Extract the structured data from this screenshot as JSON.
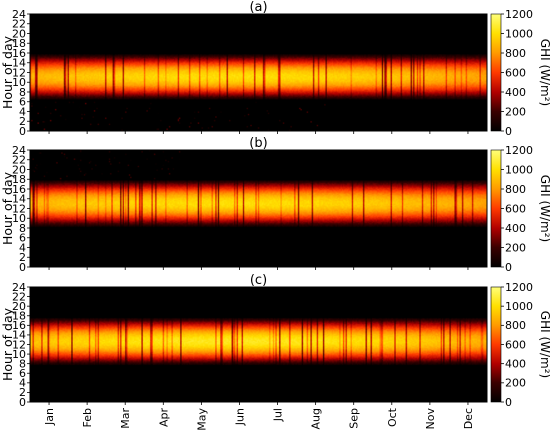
{
  "chart_data": [
    {
      "type": "heatmap",
      "title": "(a)",
      "ylabel": "Hour of day",
      "xlabel": "",
      "y_ticks": [
        "0",
        "2",
        "4",
        "6",
        "8",
        "10",
        "12",
        "14",
        "16",
        "18",
        "20",
        "22",
        "24"
      ],
      "ylim": [
        0,
        24
      ],
      "colorbar_label": "GHI (W/m²)",
      "colorbar_ticks": [
        "0",
        "200",
        "400",
        "600",
        "800",
        "1000",
        "1200"
      ],
      "colorbar_range": [
        0,
        1200
      ],
      "colormap": [
        "#000000",
        "#3a0000",
        "#b20000",
        "#ff3a00",
        "#ff9a00",
        "#ffe000",
        "#ffff7a"
      ],
      "day_start_hour": 6.7,
      "day_end_hour": 15.5,
      "peak_hour": 11.2,
      "peak_ghi": 1000,
      "stray_values_after_midnight": true
    },
    {
      "type": "heatmap",
      "title": "(b)",
      "ylabel": "Hour of day",
      "xlabel": "",
      "y_ticks": [
        "0",
        "2",
        "4",
        "6",
        "8",
        "10",
        "12",
        "14",
        "16",
        "18",
        "20",
        "22",
        "24"
      ],
      "ylim": [
        0,
        24
      ],
      "colorbar_label": "GHI (W/m²)",
      "colorbar_ticks": [
        "0",
        "200",
        "400",
        "600",
        "800",
        "1000",
        "1200"
      ],
      "colorbar_range": [
        0,
        1200
      ],
      "colormap": [
        "#000000",
        "#3a0000",
        "#b20000",
        "#ff3a00",
        "#ff9a00",
        "#ffe000",
        "#ffff7a"
      ],
      "day_start_hour": 8.5,
      "day_end_hour": 17.6,
      "peak_hour": 13.0,
      "peak_ghi": 1000,
      "stray_values_late_evening": true
    },
    {
      "type": "heatmap",
      "title": "(c)",
      "ylabel": "Hour of day",
      "xlabel": "",
      "y_ticks": [
        "0",
        "2",
        "4",
        "6",
        "8",
        "10",
        "12",
        "14",
        "16",
        "18",
        "20",
        "22",
        "24"
      ],
      "ylim": [
        0,
        24
      ],
      "x_categories": [
        "Jan",
        "Feb",
        "Mar",
        "Apr",
        "May",
        "Jun",
        "Jul",
        "Aug",
        "Sep",
        "Oct",
        "Nov",
        "Dec"
      ],
      "colorbar_label": "GHI (W/m²)",
      "colorbar_ticks": [
        "0",
        "200",
        "400",
        "600",
        "800",
        "1000",
        "1200"
      ],
      "colorbar_range": [
        0,
        1200
      ],
      "colormap": [
        "#000000",
        "#3a0000",
        "#b20000",
        "#ff3a00",
        "#ff9a00",
        "#ffe000",
        "#ffff7a"
      ],
      "day_start_hour": 8.0,
      "day_end_hour": 17.3,
      "peak_hour": 12.5,
      "peak_ghi": 1050
    }
  ]
}
